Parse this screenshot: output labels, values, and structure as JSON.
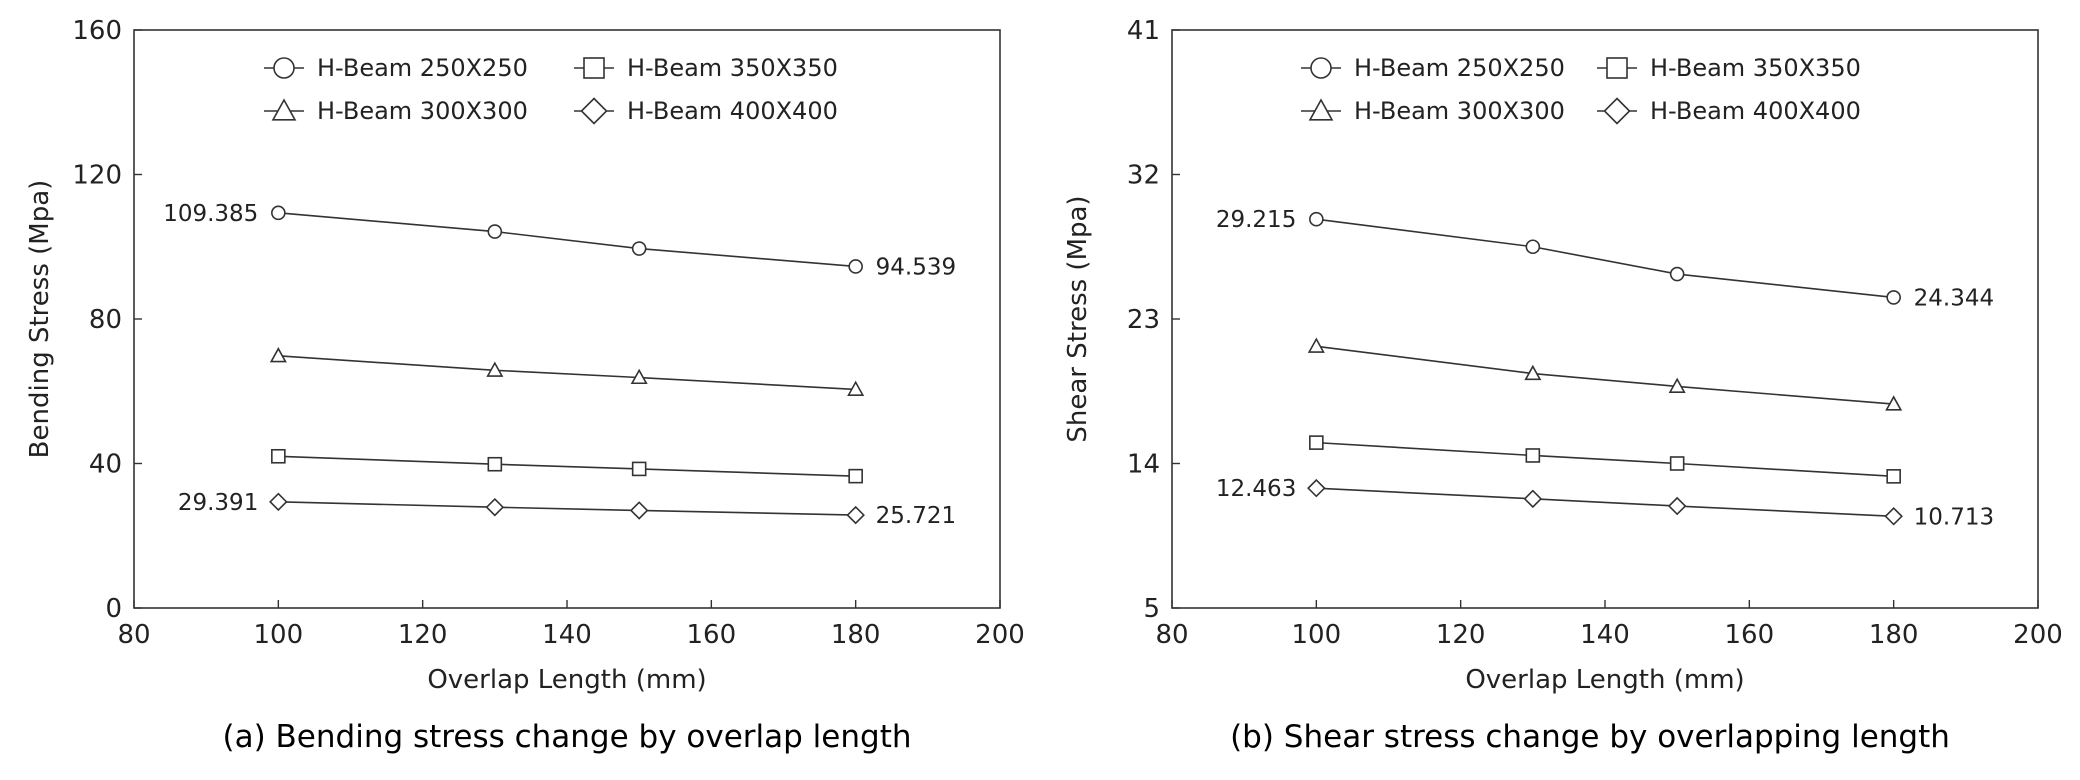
{
  "chart_data": [
    {
      "type": "line",
      "title": "",
      "caption": "(a) Bending stress change by overlap length",
      "xlabel": "Overlap Length (mm)",
      "ylabel": "Bending Stress (Mpa)",
      "xlim": [
        80,
        200
      ],
      "ylim": [
        0,
        160
      ],
      "xticks": [
        "80",
        "100",
        "120",
        "140",
        "160",
        "180",
        "200"
      ],
      "yticks": [
        "0",
        "40",
        "80",
        "120",
        "160"
      ],
      "grid": false,
      "legend_position": "top",
      "x": [
        100,
        130,
        150,
        180
      ],
      "series": [
        {
          "name": "H-Beam 250X250",
          "marker": "circle",
          "values": [
            109.385,
            104.2,
            99.5,
            94.539
          ]
        },
        {
          "name": "H-Beam 350X350",
          "marker": "square",
          "values": [
            42.0,
            39.8,
            38.5,
            36.5
          ]
        },
        {
          "name": "H-Beam 300X300",
          "marker": "triangle",
          "values": [
            69.8,
            65.8,
            63.8,
            60.5
          ]
        },
        {
          "name": "H-Beam 400X400",
          "marker": "diamond",
          "values": [
            29.391,
            27.9,
            27.0,
            25.721
          ]
        }
      ],
      "annotations": [
        {
          "text": "109.385",
          "series": 0,
          "point": 0,
          "side": "left"
        },
        {
          "text": "94.539",
          "series": 0,
          "point": 3,
          "side": "right"
        },
        {
          "text": "29.391",
          "series": 3,
          "point": 0,
          "side": "left"
        },
        {
          "text": "25.721",
          "series": 3,
          "point": 3,
          "side": "right"
        }
      ]
    },
    {
      "type": "line",
      "title": "",
      "caption": "(b) Shear stress change by overlapping length",
      "xlabel": "Overlap Length (mm)",
      "ylabel": "Shear Stress (Mpa)",
      "xlim": [
        80,
        200
      ],
      "ylim": [
        5,
        41
      ],
      "xticks": [
        "80",
        "100",
        "120",
        "140",
        "160",
        "180",
        "200"
      ],
      "yticks": [
        "5",
        "14",
        "23",
        "32",
        "41"
      ],
      "grid": false,
      "legend_position": "top",
      "x": [
        100,
        130,
        150,
        180
      ],
      "series": [
        {
          "name": "H-Beam 250X250",
          "marker": "circle",
          "values": [
            29.215,
            27.5,
            25.8,
            24.344
          ]
        },
        {
          "name": "H-Beam 350X350",
          "marker": "square",
          "values": [
            15.3,
            14.5,
            14.0,
            13.2
          ]
        },
        {
          "name": "H-Beam 300X300",
          "marker": "triangle",
          "values": [
            21.3,
            19.6,
            18.8,
            17.7
          ]
        },
        {
          "name": "H-Beam 400X400",
          "marker": "diamond",
          "values": [
            12.463,
            11.8,
            11.35,
            10.713
          ]
        }
      ],
      "annotations": [
        {
          "text": "29.215",
          "series": 0,
          "point": 0,
          "side": "left"
        },
        {
          "text": "24.344",
          "series": 0,
          "point": 3,
          "side": "right"
        },
        {
          "text": "12.463",
          "series": 3,
          "point": 0,
          "side": "left"
        },
        {
          "text": "10.713",
          "series": 3,
          "point": 3,
          "side": "right"
        }
      ]
    }
  ]
}
